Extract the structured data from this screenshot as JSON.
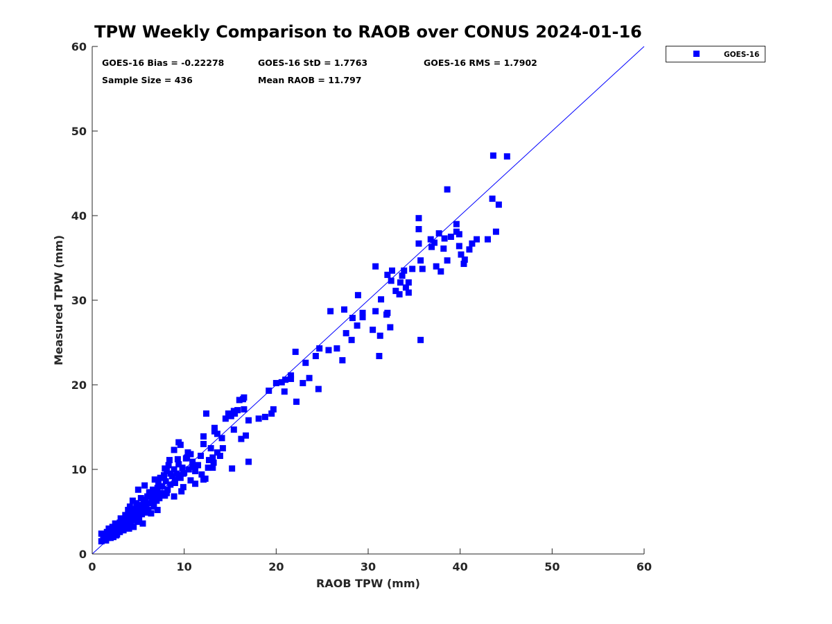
{
  "chart_data": {
    "type": "scatter",
    "title": "TPW Weekly Comparison to RAOB over CONUS 2024-01-16",
    "xlabel": "RAOB TPW (mm)",
    "ylabel": "Measured TPW (mm)",
    "xlim": [
      0,
      60
    ],
    "ylim": [
      0,
      60
    ],
    "xticks": [
      "0",
      "10",
      "20",
      "30",
      "40",
      "50",
      "60"
    ],
    "yticks": [
      "0",
      "10",
      "20",
      "30",
      "40",
      "50",
      "60"
    ],
    "grid": false,
    "legend": {
      "placement": "outside-top-right",
      "entries": [
        "GOES-16"
      ]
    },
    "reference_line": "y = x",
    "colors": {
      "series": "#0000ff",
      "line": "#0000ff"
    },
    "stats": {
      "bias": "GOES-16 Bias = -0.22278",
      "std": "GOES-16 StD = 1.7763",
      "rms": "GOES-16 RMS = 1.7902",
      "sample": "Sample Size = 436",
      "mean": "Mean RAOB = 11.797"
    },
    "series": [
      {
        "name": "GOES-16",
        "points": [
          [
            43.6,
            47.1
          ],
          [
            45.1,
            47.0
          ],
          [
            38.6,
            43.1
          ],
          [
            43.5,
            42.0
          ],
          [
            44.2,
            41.3
          ],
          [
            35.5,
            39.7
          ],
          [
            35.5,
            38.4
          ],
          [
            39.6,
            39.0
          ],
          [
            37.7,
            37.9
          ],
          [
            39.6,
            38.1
          ],
          [
            39.9,
            37.8
          ],
          [
            43.9,
            38.1
          ],
          [
            36.8,
            37.2
          ],
          [
            37.2,
            36.8
          ],
          [
            35.5,
            36.7
          ],
          [
            38.3,
            37.3
          ],
          [
            39.0,
            37.5
          ],
          [
            39.9,
            36.4
          ],
          [
            38.2,
            36.1
          ],
          [
            36.9,
            36.3
          ],
          [
            41.0,
            36.0
          ],
          [
            41.3,
            36.7
          ],
          [
            41.8,
            37.2
          ],
          [
            43.0,
            37.2
          ],
          [
            40.1,
            35.4
          ],
          [
            40.5,
            34.8
          ],
          [
            40.4,
            34.3
          ],
          [
            38.6,
            34.7
          ],
          [
            35.7,
            34.7
          ],
          [
            37.4,
            34.0
          ],
          [
            37.9,
            33.4
          ],
          [
            35.9,
            33.7
          ],
          [
            34.8,
            33.7
          ],
          [
            30.8,
            34.0
          ],
          [
            32.1,
            33.0
          ],
          [
            32.6,
            33.5
          ],
          [
            32.5,
            32.3
          ],
          [
            33.7,
            32.9
          ],
          [
            33.9,
            33.5
          ],
          [
            33.5,
            32.1
          ],
          [
            34.1,
            31.5
          ],
          [
            34.4,
            32.1
          ],
          [
            34.4,
            30.9
          ],
          [
            33.0,
            31.1
          ],
          [
            33.4,
            30.7
          ],
          [
            31.4,
            30.1
          ],
          [
            35.7,
            25.3
          ],
          [
            28.9,
            30.6
          ],
          [
            25.9,
            28.7
          ],
          [
            27.4,
            28.9
          ],
          [
            29.4,
            28.5
          ],
          [
            29.4,
            28.0
          ],
          [
            28.3,
            27.9
          ],
          [
            30.8,
            28.7
          ],
          [
            32.1,
            28.5
          ],
          [
            32.0,
            28.3
          ],
          [
            28.8,
            27.0
          ],
          [
            32.4,
            26.8
          ],
          [
            30.5,
            26.5
          ],
          [
            27.6,
            26.1
          ],
          [
            31.3,
            25.8
          ],
          [
            28.2,
            25.3
          ],
          [
            24.7,
            24.3
          ],
          [
            25.7,
            24.1
          ],
          [
            26.6,
            24.3
          ],
          [
            24.3,
            23.4
          ],
          [
            27.2,
            22.9
          ],
          [
            31.2,
            23.4
          ],
          [
            23.2,
            22.6
          ],
          [
            22.1,
            23.9
          ],
          [
            22.9,
            20.2
          ],
          [
            23.6,
            20.8
          ],
          [
            21.6,
            21.1
          ],
          [
            21.6,
            20.7
          ],
          [
            21.0,
            20.6
          ],
          [
            20.6,
            20.3
          ],
          [
            20.0,
            20.2
          ],
          [
            20.9,
            19.2
          ],
          [
            19.2,
            19.3
          ],
          [
            24.6,
            19.5
          ],
          [
            22.2,
            18.0
          ],
          [
            19.7,
            17.1
          ],
          [
            19.5,
            16.6
          ],
          [
            18.8,
            16.2
          ],
          [
            18.1,
            16.0
          ],
          [
            16.4,
            18.3
          ],
          [
            16.0,
            18.2
          ],
          [
            16.5,
            18.5
          ],
          [
            15.8,
            17.0
          ],
          [
            16.5,
            17.1
          ],
          [
            15.4,
            16.9
          ],
          [
            15.5,
            16.6
          ],
          [
            15.1,
            16.3
          ],
          [
            14.8,
            16.6
          ],
          [
            14.5,
            16.0
          ],
          [
            12.4,
            16.6
          ],
          [
            17.0,
            15.8
          ],
          [
            15.4,
            14.7
          ],
          [
            16.7,
            14.0
          ],
          [
            16.2,
            13.6
          ],
          [
            13.3,
            14.9
          ],
          [
            13.3,
            14.5
          ],
          [
            13.6,
            14.2
          ],
          [
            14.1,
            13.7
          ],
          [
            12.1,
            13.9
          ],
          [
            12.1,
            13.0
          ],
          [
            14.2,
            12.5
          ],
          [
            12.9,
            12.5
          ],
          [
            13.6,
            12.0
          ],
          [
            13.9,
            11.6
          ],
          [
            13.1,
            11.4
          ],
          [
            12.7,
            11.1
          ],
          [
            12.6,
            10.2
          ],
          [
            13.1,
            10.2
          ],
          [
            15.2,
            10.1
          ],
          [
            17.0,
            10.9
          ],
          [
            12.1,
            8.8
          ],
          [
            11.2,
            8.3
          ],
          [
            13.2,
            10.8
          ],
          [
            9.4,
            13.2
          ],
          [
            9.6,
            12.9
          ],
          [
            8.9,
            12.3
          ],
          [
            10.4,
            12.0
          ],
          [
            8.4,
            11.1
          ],
          [
            9.3,
            11.2
          ],
          [
            10.3,
            11.4
          ],
          [
            10.9,
            10.9
          ],
          [
            11.8,
            11.6
          ],
          [
            10.9,
            10.3
          ],
          [
            11.4,
            10.5
          ],
          [
            12.3,
            8.9
          ],
          [
            7.9,
            10.1
          ],
          [
            8.5,
            9.5
          ],
          [
            9.4,
            9.3
          ],
          [
            9.9,
            9.5
          ],
          [
            11.9,
            9.4
          ],
          [
            9.0,
            8.4
          ],
          [
            9.9,
            7.9
          ],
          [
            8.9,
            6.8
          ],
          [
            9.7,
            7.4
          ],
          [
            8.1,
            7.2
          ],
          [
            7.1,
            5.2
          ],
          [
            10.7,
            8.7
          ],
          [
            11.5,
            10.5
          ],
          [
            1.0,
            1.5
          ],
          [
            1.0,
            2.4
          ],
          [
            1.2,
            1.8
          ],
          [
            1.4,
            2.0
          ],
          [
            1.5,
            1.6
          ],
          [
            1.6,
            2.6
          ],
          [
            1.8,
            2.2
          ],
          [
            1.8,
            3.0
          ],
          [
            2.0,
            1.9
          ],
          [
            2.1,
            2.5
          ],
          [
            2.2,
            3.2
          ],
          [
            2.3,
            2.0
          ],
          [
            2.5,
            2.8
          ],
          [
            2.5,
            3.6
          ],
          [
            2.7,
            2.3
          ],
          [
            2.8,
            3.1
          ],
          [
            3.0,
            2.6
          ],
          [
            3.0,
            3.7
          ],
          [
            3.1,
            4.2
          ],
          [
            3.2,
            3.0
          ],
          [
            3.3,
            3.4
          ],
          [
            3.4,
            2.8
          ],
          [
            3.5,
            4.0
          ],
          [
            3.6,
            4.6
          ],
          [
            3.7,
            3.3
          ],
          [
            3.8,
            3.8
          ],
          [
            3.9,
            5.2
          ],
          [
            4.0,
            3.0
          ],
          [
            4.0,
            4.4
          ],
          [
            4.1,
            5.6
          ],
          [
            4.2,
            3.6
          ],
          [
            4.3,
            4.9
          ],
          [
            4.4,
            6.3
          ],
          [
            4.5,
            4.1
          ],
          [
            4.5,
            3.2
          ],
          [
            4.6,
            5.3
          ],
          [
            4.7,
            4.6
          ],
          [
            4.8,
            6.0
          ],
          [
            4.9,
            3.8
          ],
          [
            5.0,
            5.0
          ],
          [
            5.0,
            7.6
          ],
          [
            5.1,
            4.3
          ],
          [
            5.2,
            5.8
          ],
          [
            5.3,
            6.6
          ],
          [
            5.4,
            4.7
          ],
          [
            5.5,
            3.6
          ],
          [
            5.5,
            5.4
          ],
          [
            5.6,
            6.2
          ],
          [
            5.7,
            8.1
          ],
          [
            5.8,
            4.9
          ],
          [
            5.9,
            5.7
          ],
          [
            6.0,
            6.8
          ],
          [
            6.1,
            5.2
          ],
          [
            6.2,
            7.3
          ],
          [
            6.3,
            6.0
          ],
          [
            6.4,
            4.8
          ],
          [
            6.5,
            6.5
          ],
          [
            6.6,
            7.6
          ],
          [
            6.7,
            5.6
          ],
          [
            6.8,
            8.8
          ],
          [
            6.9,
            6.9
          ],
          [
            7.0,
            6.3
          ],
          [
            7.1,
            7.8
          ],
          [
            7.2,
            8.5
          ],
          [
            7.3,
            6.6
          ],
          [
            7.4,
            9.0
          ],
          [
            7.5,
            7.2
          ],
          [
            7.6,
            8.0
          ],
          [
            7.8,
            9.3
          ],
          [
            7.9,
            6.9
          ],
          [
            8.0,
            8.6
          ],
          [
            8.1,
            9.8
          ],
          [
            8.2,
            7.6
          ],
          [
            8.3,
            10.5
          ],
          [
            8.5,
            8.2
          ],
          [
            8.7,
            9.2
          ],
          [
            8.9,
            10.0
          ],
          [
            9.0,
            8.7
          ],
          [
            9.2,
            9.5
          ],
          [
            9.4,
            10.6
          ],
          [
            9.6,
            9.0
          ],
          [
            9.8,
            10.2
          ],
          [
            10.0,
            9.6
          ],
          [
            10.2,
            11.3
          ],
          [
            10.5,
            10.0
          ],
          [
            10.7,
            11.8
          ],
          [
            11.0,
            10.4
          ],
          [
            11.2,
            9.8
          ],
          [
            1.3,
            1.7
          ],
          [
            2.0,
            2.7
          ],
          [
            2.6,
            2.2
          ],
          [
            3.4,
            3.9
          ],
          [
            4.3,
            4.0
          ],
          [
            4.8,
            5.3
          ],
          [
            5.3,
            5.1
          ],
          [
            5.8,
            6.4
          ],
          [
            6.3,
            7.0
          ],
          [
            7.0,
            7.4
          ],
          [
            1.7,
            1.9
          ],
          [
            2.4,
            3.1
          ],
          [
            3.6,
            3.1
          ],
          [
            4.1,
            4.7
          ],
          [
            5.6,
            5.9
          ],
          [
            6.6,
            6.2
          ]
        ]
      }
    ]
  }
}
